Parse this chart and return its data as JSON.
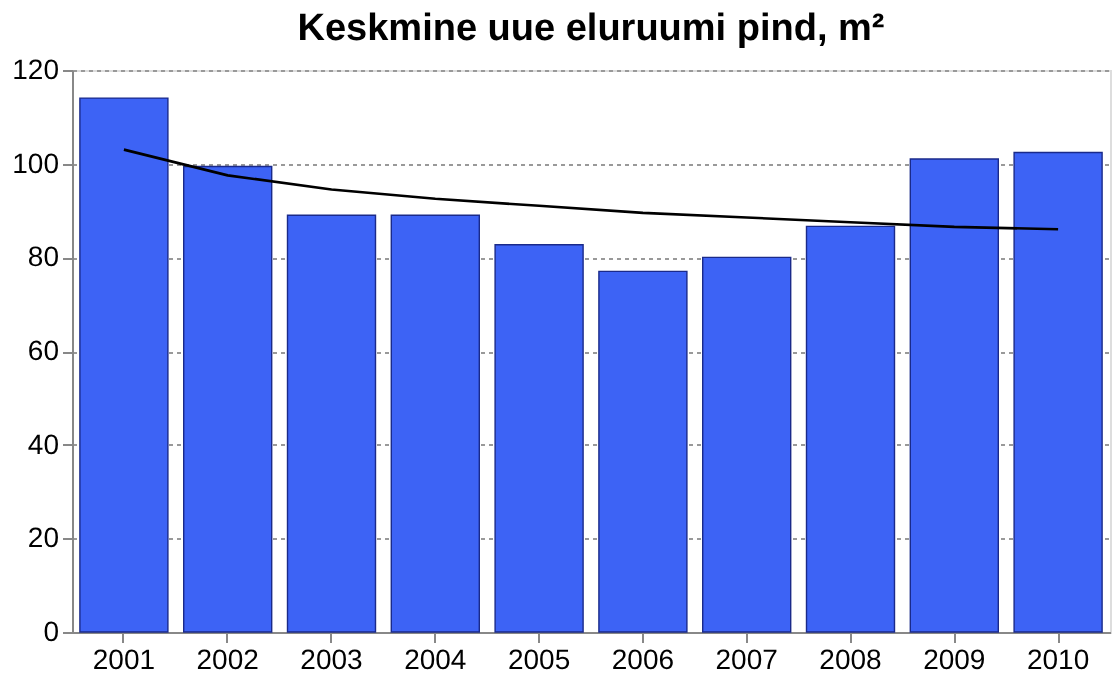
{
  "chart_data": {
    "type": "bar",
    "title": "Keskmine uue eluruumi pind, m²",
    "categories": [
      "2001",
      "2002",
      "2003",
      "2004",
      "2005",
      "2006",
      "2007",
      "2008",
      "2009",
      "2010"
    ],
    "series": [
      {
        "color": "#3d63f5",
        "values": [
          114,
          99.4,
          89,
          89,
          82.7,
          77,
          80,
          86.6,
          101,
          102.4
        ]
      },
      {
        "type": "line",
        "color": "#000000",
        "values": [
          103,
          97.5,
          94.5,
          92.5,
          91,
          89.5,
          88.5,
          87.5,
          86.5,
          86
        ]
      }
    ],
    "ylim": [
      0,
      120
    ],
    "yticks": [
      0,
      20,
      40,
      60,
      80,
      100,
      120
    ],
    "grid": "y",
    "marker": "none",
    "line_style": "solid"
  }
}
